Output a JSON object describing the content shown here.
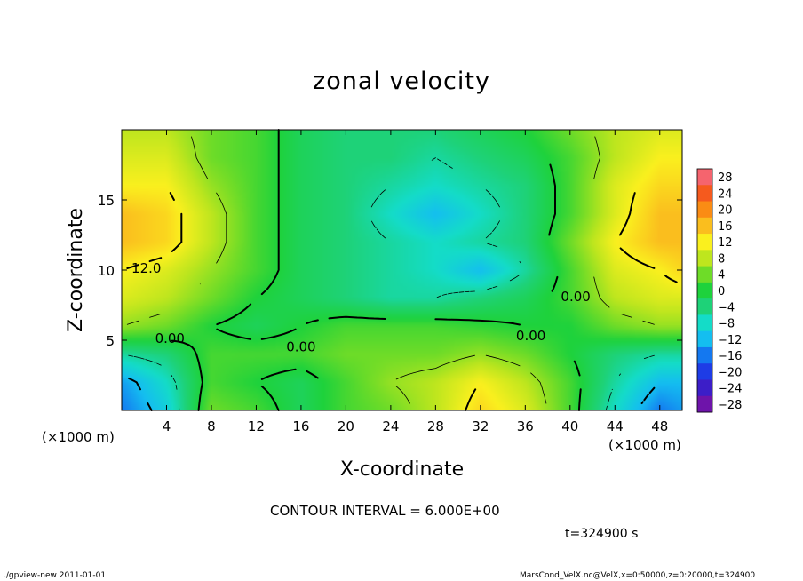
{
  "title": "zonal velocity",
  "contour_interval_text": "CONTOUR INTERVAL = 6.000E+00",
  "time_text": "t=324900 s",
  "footer_left": "./gpview-new   2011-01-01",
  "footer_right": "MarsCond_VelX.nc@VelX,x=0:50000,z=0:20000,t=324900",
  "chart_data": {
    "type": "heatmap",
    "title": "zonal velocity",
    "xlabel": "X-coordinate",
    "ylabel": "Z-coordinate",
    "x_unit_label": "(×1000 m)",
    "y_unit_label": "(×1000 m)",
    "xlim": [
      0,
      50
    ],
    "ylim": [
      0,
      20
    ],
    "x_ticks": [
      4,
      8,
      12,
      16,
      20,
      24,
      28,
      32,
      36,
      40,
      44,
      48
    ],
    "y_ticks": [
      5,
      10,
      15
    ],
    "x": [
      0,
      4,
      8,
      12,
      16,
      20,
      24,
      28,
      32,
      36,
      40,
      44,
      48,
      50
    ],
    "y": [
      0,
      2,
      4,
      6,
      8,
      10,
      12,
      14,
      16,
      18,
      20
    ],
    "z": [
      [
        -16,
        -10,
        4,
        2,
        -2,
        2,
        4,
        8,
        14,
        10,
        2,
        -8,
        -16,
        -14
      ],
      [
        -14,
        -8,
        2,
        0,
        -2,
        2,
        6,
        8,
        12,
        8,
        2,
        -6,
        -12,
        -12
      ],
      [
        -6,
        -4,
        2,
        2,
        2,
        4,
        4,
        4,
        6,
        4,
        0,
        -4,
        -6,
        -6
      ],
      [
        6,
        4,
        0,
        -2,
        0,
        2,
        2,
        2,
        1,
        0,
        0,
        4,
        6,
        6
      ],
      [
        10,
        8,
        4,
        0,
        -2,
        -4,
        -6,
        -6,
        -4,
        -2,
        2,
        8,
        10,
        10
      ],
      [
        12,
        10,
        6,
        2,
        -2,
        -4,
        -6,
        -8,
        -12,
        -6,
        2,
        10,
        12,
        14
      ],
      [
        16,
        14,
        8,
        2,
        -2,
        -4,
        -6,
        -8,
        -6,
        -4,
        4,
        12,
        16,
        16
      ],
      [
        16,
        14,
        8,
        2,
        -2,
        -4,
        -8,
        -12,
        -8,
        -4,
        2,
        10,
        16,
        16
      ],
      [
        12,
        12,
        6,
        2,
        -2,
        -4,
        -6,
        -8,
        -6,
        -4,
        2,
        10,
        14,
        14
      ],
      [
        10,
        10,
        4,
        2,
        -2,
        -4,
        -4,
        -6,
        -4,
        -2,
        2,
        8,
        12,
        12
      ],
      [
        8,
        8,
        4,
        2,
        -2,
        -4,
        -4,
        -4,
        -2,
        0,
        4,
        8,
        10,
        10
      ]
    ],
    "colorbar": {
      "levels": [
        28,
        24,
        20,
        16,
        12,
        8,
        4,
        0,
        -4,
        -8,
        -12,
        -16,
        -20,
        -24,
        -28
      ],
      "labels": [
        "28",
        "24",
        "20",
        "16",
        "12",
        "8",
        "4",
        "0",
        "−4",
        "−8",
        "−12",
        "−16",
        "−20",
        "−24",
        "−28"
      ]
    },
    "contour_labels": [
      {
        "text": "12.0",
        "x": 2.2,
        "y": 9.8
      },
      {
        "text": "0.00",
        "x": 4.3,
        "y": 4.8
      },
      {
        "text": "0.00",
        "x": 16,
        "y": 4.2
      },
      {
        "text": "0.00",
        "x": 36.5,
        "y": 5.0
      },
      {
        "text": "0.00",
        "x": 40.5,
        "y": 7.8
      }
    ],
    "contour_interval": 6,
    "grid": false
  }
}
